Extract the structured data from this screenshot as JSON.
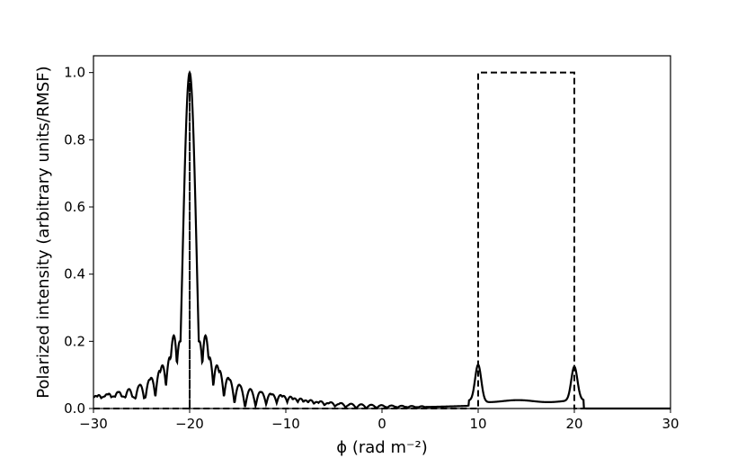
{
  "chart_data": {
    "type": "line",
    "xlabel": "ϕ (rad m⁻²)",
    "ylabel": "Polarized intensity (arbitrary units/RMSF)",
    "xlim": [
      -30,
      30
    ],
    "ylim": [
      0.0,
      1.05
    ],
    "x_ticks": [
      "−30",
      "−20",
      "−10",
      "0",
      "10",
      "20",
      "30"
    ],
    "y_ticks": [
      "0.0",
      "0.2",
      "0.4",
      "0.6",
      "0.8",
      "1.0"
    ],
    "grid": false,
    "series": [
      {
        "style": "solid",
        "color": "#000000",
        "description_points": {
          "x": [
            -30,
            -28,
            -26,
            -24,
            -23,
            -22,
            -21.3,
            -21,
            -20.6,
            -20.3,
            -20,
            -19.7,
            -19.4,
            -19,
            -18.7,
            -18,
            -16,
            -14,
            -12,
            -10,
            -5,
            0,
            5,
            8,
            9,
            9.5,
            10,
            10.5,
            11,
            12,
            14,
            16,
            18,
            19,
            19.5,
            20,
            20.5,
            21,
            22,
            24,
            30
          ],
          "y": [
            0.03,
            0.035,
            0.045,
            0.06,
            0.09,
            0.15,
            0.27,
            0.2,
            0.4,
            0.85,
            1.0,
            0.85,
            0.4,
            0.27,
            0.2,
            0.12,
            0.07,
            0.05,
            0.04,
            0.03,
            0.02,
            0.01,
            0.005,
            0.01,
            0.03,
            0.08,
            0.125,
            0.07,
            0.04,
            0.03,
            0.025,
            0.025,
            0.03,
            0.05,
            0.09,
            0.12,
            0.07,
            0.02,
            0.005,
            0.0,
            0.0
          ]
        }
      },
      {
        "style": "dashed",
        "color": "#000000",
        "segments": [
          {
            "x": [
              -30,
              -20,
              -20,
              -20,
              -20,
              10,
              10,
              20,
              20,
              30
            ],
            "y": [
              0.0,
              0.0,
              1.0,
              1.0,
              0.0,
              0.0,
              1.0,
              1.0,
              0.0,
              0.0
            ]
          }
        ]
      }
    ]
  }
}
